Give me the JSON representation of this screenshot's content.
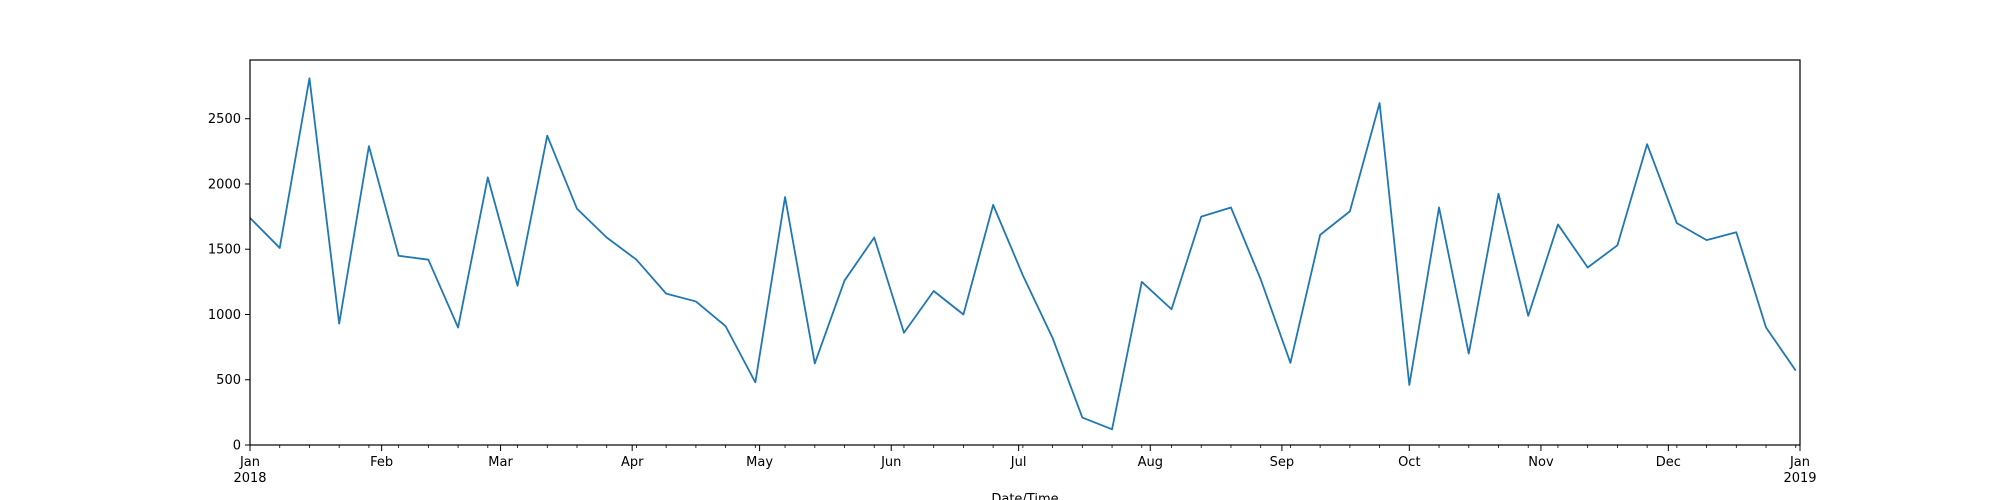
{
  "chart_data": {
    "type": "line",
    "title": "",
    "xlabel": "Date/Time",
    "ylabel": "",
    "ylim": [
      0,
      2950
    ],
    "xlim": [
      "2018-01-01",
      "2019-01-01"
    ],
    "grid": false,
    "legend": "none",
    "line_color": "#1f77b4",
    "y_ticks": [
      0,
      500,
      1000,
      1500,
      2000,
      2500
    ],
    "x_ticks": [
      {
        "date": "2018-01-01",
        "label": "Jan",
        "sub": "2018"
      },
      {
        "date": "2018-02-01",
        "label": "Feb",
        "sub": ""
      },
      {
        "date": "2018-03-01",
        "label": "Mar",
        "sub": ""
      },
      {
        "date": "2018-04-01",
        "label": "Apr",
        "sub": ""
      },
      {
        "date": "2018-05-01",
        "label": "May",
        "sub": ""
      },
      {
        "date": "2018-06-01",
        "label": "Jun",
        "sub": ""
      },
      {
        "date": "2018-07-01",
        "label": "Jul",
        "sub": ""
      },
      {
        "date": "2018-08-01",
        "label": "Aug",
        "sub": ""
      },
      {
        "date": "2018-09-01",
        "label": "Sep",
        "sub": ""
      },
      {
        "date": "2018-10-01",
        "label": "Oct",
        "sub": ""
      },
      {
        "date": "2018-11-01",
        "label": "Nov",
        "sub": ""
      },
      {
        "date": "2018-12-01",
        "label": "Dec",
        "sub": ""
      },
      {
        "date": "2019-01-01",
        "label": "Jan",
        "sub": "2019"
      }
    ],
    "series": [
      {
        "name": "",
        "x": [
          "2018-01-01",
          "2018-01-08",
          "2018-01-15",
          "2018-01-22",
          "2018-01-29",
          "2018-02-05",
          "2018-02-12",
          "2018-02-19",
          "2018-02-26",
          "2018-03-05",
          "2018-03-12",
          "2018-03-19",
          "2018-03-26",
          "2018-04-02",
          "2018-04-09",
          "2018-04-16",
          "2018-04-23",
          "2018-04-30",
          "2018-05-07",
          "2018-05-14",
          "2018-05-21",
          "2018-05-28",
          "2018-06-04",
          "2018-06-11",
          "2018-06-18",
          "2018-06-25",
          "2018-07-02",
          "2018-07-09",
          "2018-07-16",
          "2018-07-23",
          "2018-07-30",
          "2018-08-06",
          "2018-08-13",
          "2018-08-20",
          "2018-08-27",
          "2018-09-03",
          "2018-09-10",
          "2018-09-17",
          "2018-09-24",
          "2018-10-01",
          "2018-10-08",
          "2018-10-15",
          "2018-10-22",
          "2018-10-29",
          "2018-11-05",
          "2018-11-12",
          "2018-11-19",
          "2018-11-26",
          "2018-12-03",
          "2018-12-10",
          "2018-12-17",
          "2018-12-24",
          "2018-12-31"
        ],
        "y": [
          1740,
          1510,
          2810,
          930,
          2290,
          1450,
          1420,
          900,
          2050,
          1220,
          2370,
          1810,
          1590,
          1420,
          1160,
          1100,
          910,
          480,
          1900,
          625,
          1260,
          1590,
          860,
          1180,
          1000,
          1840,
          1300,
          820,
          210,
          120,
          1250,
          1040,
          1750,
          1820,
          1270,
          630,
          1610,
          1790,
          2620,
          460,
          1820,
          700,
          1925,
          990,
          1690,
          1360,
          1530,
          2305,
          1700,
          1570,
          1630,
          900,
          570
        ]
      }
    ]
  }
}
